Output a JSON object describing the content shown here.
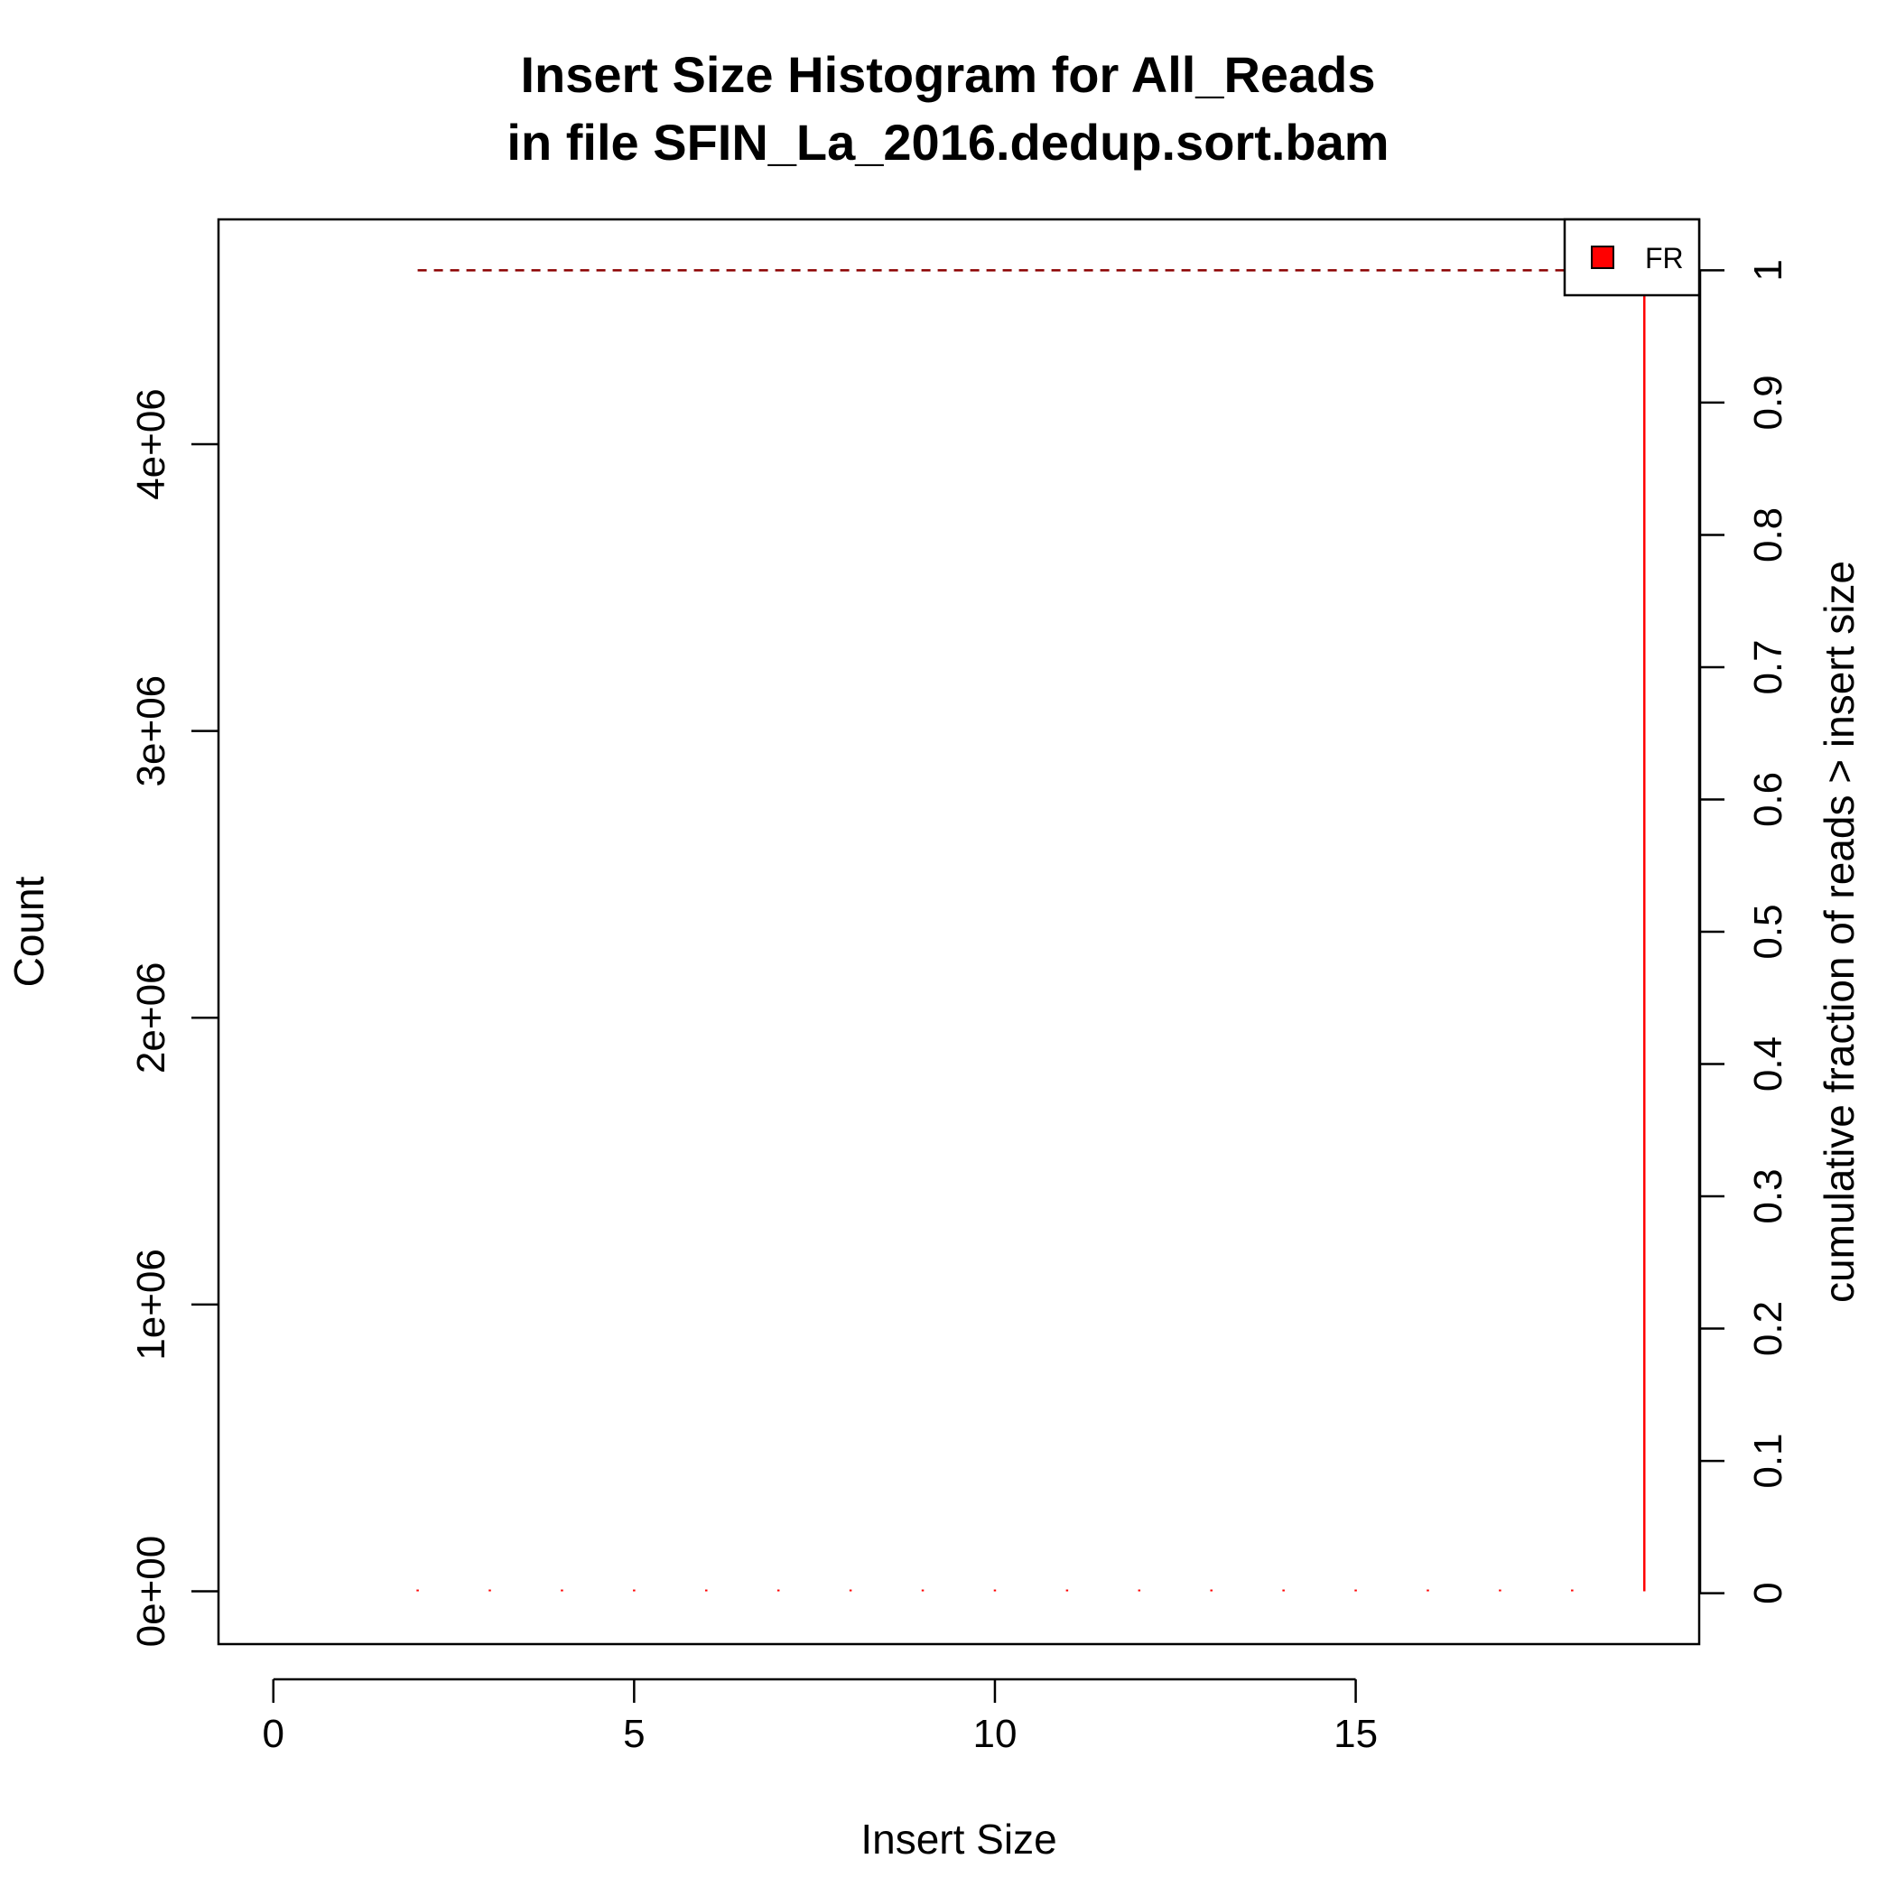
{
  "chart_data": {
    "type": "bar",
    "title": [
      "Insert Size Histogram for All_Reads",
      "in file SFIN_La_2016.dedup.sort.bam"
    ],
    "xlabel": "Insert Size",
    "ylabel": "Count",
    "y2label": "cumulative fraction of reads > insert size",
    "xlim": [
      -0.76,
      19.76
    ],
    "ylim": [
      -184000,
      4784000
    ],
    "y2lim": [
      -0.0385,
      1.0385
    ],
    "x_ticks": [
      0,
      5,
      10,
      15
    ],
    "x_tick_labels": [
      "0",
      "5",
      "10",
      "15"
    ],
    "y_ticks": [
      0,
      1000000,
      2000000,
      3000000,
      4000000
    ],
    "y_tick_labels": [
      "0e+00",
      "1e+06",
      "2e+06",
      "3e+06",
      "4e+06"
    ],
    "y2_ticks": [
      0,
      0.1,
      0.2,
      0.3,
      0.4,
      0.5,
      0.6,
      0.7,
      0.8,
      0.9,
      1
    ],
    "y2_tick_labels": [
      "0",
      "0.1",
      "0.2",
      "0.3",
      "0.4",
      "0.5",
      "0.6",
      "0.7",
      "0.8",
      "0.9",
      "1"
    ],
    "series": [
      {
        "name": "FR",
        "color": "#ff0000",
        "x": [
          2,
          3,
          4,
          5,
          6,
          7,
          8,
          9,
          10,
          11,
          12,
          13,
          14,
          15,
          16,
          17,
          18,
          19
        ],
        "values": [
          1,
          1,
          1,
          1,
          1,
          1,
          1,
          1,
          1,
          1,
          1,
          1,
          1,
          1,
          1,
          1,
          1,
          4600000
        ]
      }
    ],
    "cumulative": {
      "color": "#8b0000",
      "style": "dashed",
      "x": [
        2,
        19
      ],
      "values": [
        1,
        1
      ]
    },
    "legend": {
      "position": "top-right",
      "entries": [
        "FR"
      ]
    },
    "grid": false
  }
}
